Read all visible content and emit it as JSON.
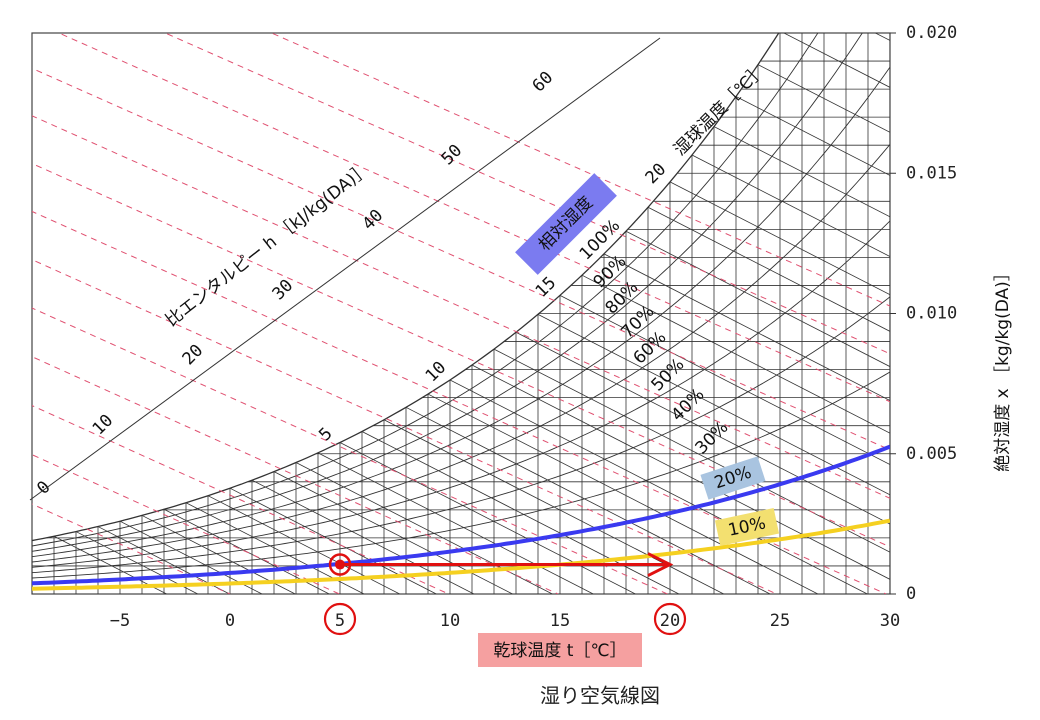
{
  "chart_data": {
    "type": "line",
    "title": "湿り空気線図",
    "xlabel": "乾球温度 t［℃］",
    "ylabel": "絶対湿度 x ［kg/kg(DA)］",
    "enthalpy_label": "比エンタルピー h ［kJ/kg(DA)］",
    "wet_bulb_label": "湿球温度［℃］",
    "rh_label": "相対湿度",
    "xlim": [
      -9,
      30
    ],
    "ylim": [
      0,
      0.02
    ],
    "x_ticks": [
      "−5",
      "0",
      "5",
      "10",
      "15",
      "20",
      "25",
      "30"
    ],
    "x_tick_values": [
      -5,
      0,
      5,
      10,
      15,
      20,
      25,
      30
    ],
    "y_ticks": [
      "0",
      "0.005",
      "0.010",
      "0.015",
      "0.020"
    ],
    "y_tick_values": [
      0,
      0.005,
      0.01,
      0.015,
      0.02
    ],
    "wet_bulb_values": [
      "5",
      "10",
      "15",
      "20"
    ],
    "enthalpy_values": [
      "0",
      "10",
      "20",
      "30",
      "40",
      "50",
      "60"
    ],
    "rh_labels": [
      "100%",
      "90%",
      "80%",
      "70%",
      "60%",
      "50%",
      "40%",
      "30%",
      "20%",
      "10%"
    ],
    "highlighted_series": [
      {
        "name": "20%",
        "rh": 20,
        "color": "#3a3af0"
      },
      {
        "name": "10%",
        "rh": 10,
        "color": "#f5d020"
      }
    ],
    "process": {
      "start_t": 5,
      "end_t": 20,
      "x": 0.00105,
      "color": "#e01010"
    },
    "circled_ticks": [
      "5",
      "20"
    ],
    "grid": true
  },
  "colors": {
    "rh_label_box": "#7b7bf0",
    "xlabel_box": "#f5a0a0",
    "rh20_box": "#a9c4e0",
    "rh10_box": "#f3e070",
    "enthalpy_line": "#e05070"
  }
}
